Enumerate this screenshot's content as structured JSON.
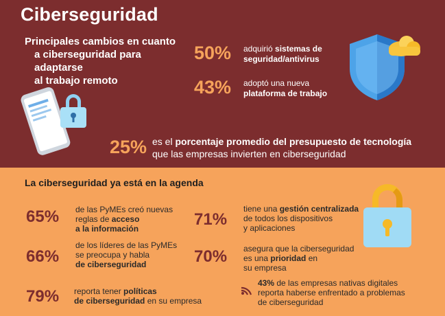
{
  "header": {
    "title": "Ciberseguridad",
    "subtitle": [
      "Principales cambios en cuanto",
      "a ciberseguridad para adaptarse",
      "al trabajo remoto"
    ]
  },
  "top_stats": [
    {
      "value": "50%",
      "pre": "adquirió ",
      "bold": "sistemas de seguridad/antivirus"
    },
    {
      "value": "43%",
      "pre": "adoptó una nueva ",
      "bold": "plataforma de trabajo"
    }
  ],
  "highlight": {
    "value": "25%",
    "pre": "es el ",
    "bold": "porcentaje promedio del presupuesto de tecnología",
    "post": "que las empresas invierten en ciberseguridad"
  },
  "agenda": {
    "title": "La ciberseguridad ya está en la agenda",
    "stats": [
      {
        "value": "65%",
        "text1": "de las PyMEs creó nuevas",
        "text2": "reglas de ",
        "bold2": "acceso",
        "bold3": "a la información"
      },
      {
        "value": "66%",
        "text1": "de los líderes de las PyMEs",
        "text2": "se preocupa y habla",
        "bold3": "de ciberseguridad"
      },
      {
        "value": "79%",
        "text1": "reporta tener ",
        "bold1": "políticas",
        "bold2": "de ciberseguridad",
        "post2": " en su empresa"
      },
      {
        "value": "71%",
        "text1": "tiene una ",
        "bold1": "gestión centralizada",
        "text2": "de todos los dispositivos",
        "text3": "y aplicaciones"
      },
      {
        "value": "70%",
        "text1": "asegura que la ciberseguridad",
        "text2": "es una ",
        "bold2": "prioridad",
        "post2": " en",
        "text3": "su empresa"
      }
    ],
    "note": {
      "bold": "43%",
      "text1": " de las empresas nativas digitales",
      "text2": "reporta haberse enfrentado a problemas",
      "text3": "de ciberseguridad"
    }
  },
  "colors": {
    "top_bg": "#7c2d2e",
    "bottom_bg": "#f6a35b",
    "accent_orange": "#f6a35b",
    "accent_maroon": "#7c2d2e"
  },
  "icons": [
    "phone-lock-icon",
    "shield-cloud-icon",
    "padlock-icon",
    "wifi-signal-icon"
  ]
}
